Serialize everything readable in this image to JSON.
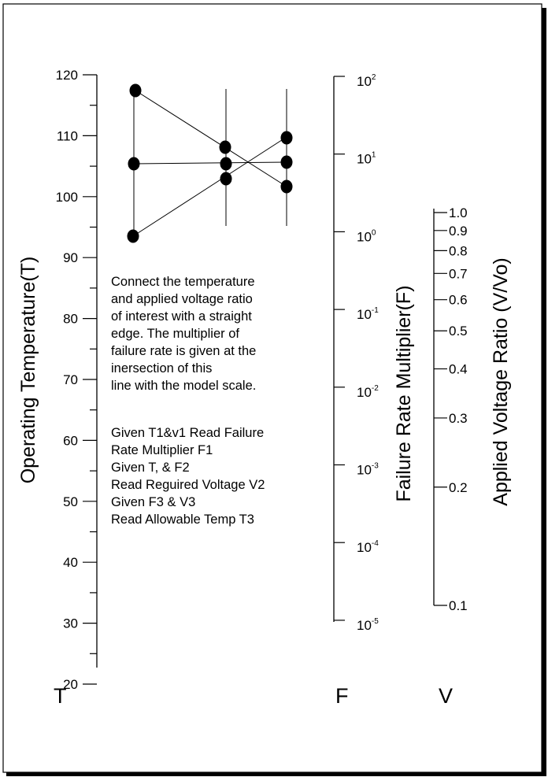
{
  "temperature_scale": {
    "title": "Operating Temperature(T)",
    "letter": "T",
    "ticks": [
      "120",
      "110",
      "100",
      "90",
      "80",
      "70",
      "60",
      "50",
      "40",
      "30",
      "20"
    ]
  },
  "failure_rate_scale": {
    "title": "Failure Rate Multiplier(F)",
    "letter": "F",
    "ticks": [
      {
        "base": "10",
        "exp": "2"
      },
      {
        "base": "10",
        "exp": "1"
      },
      {
        "base": "10",
        "exp": "0"
      },
      {
        "base": "10",
        "exp": "-1"
      },
      {
        "base": "10",
        "exp": "-2"
      },
      {
        "base": "10",
        "exp": "-3"
      },
      {
        "base": "10",
        "exp": "-4"
      },
      {
        "base": "10",
        "exp": "-5"
      }
    ]
  },
  "voltage_scale": {
    "title": "Applied Voltage Ratio (V/Vo)",
    "letter": "V",
    "ticks": [
      "1.0",
      "0.9",
      "0.8",
      "0.7",
      "0.6",
      "0.5",
      "0.4",
      "0.3",
      "0.2",
      "0.1"
    ]
  },
  "instructions": {
    "paragraph": [
      "Connect the temperature",
      "and applied voltage ratio",
      "of interest with a straight",
      "edge. The multiplier of",
      "failure rate is given at the",
      "inersection of this",
      "line with the model scale."
    ],
    "steps": [
      "Given T1&v1 Read Failure",
      "Rate Multiplier F1",
      "Given T, & F2",
      "Read Reguired Voltage V2",
      "Given F3 & V3",
      "Read Allowable Temp T3"
    ]
  },
  "line_color": "#000000"
}
